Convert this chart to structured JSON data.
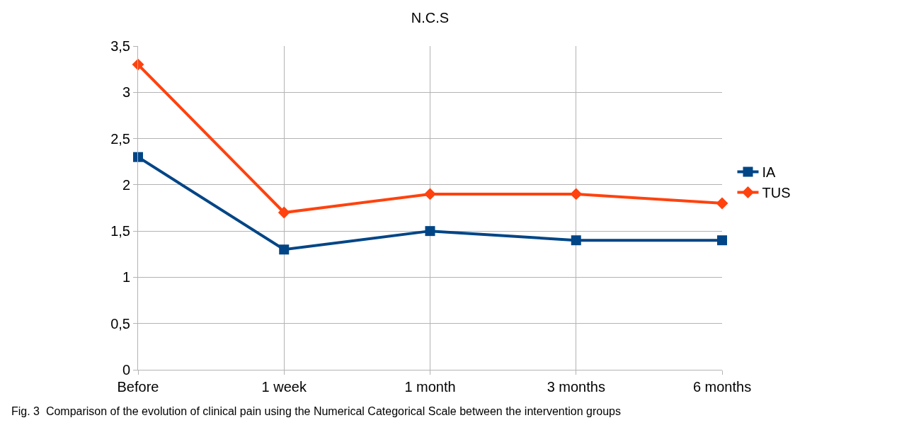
{
  "chart_data": {
    "type": "line",
    "title": "N.C.S",
    "categories": [
      "Before",
      "1 week",
      "1 month",
      "3 months",
      "6 months"
    ],
    "series": [
      {
        "name": "IA",
        "color": "#004586",
        "marker": "square",
        "values": [
          2.3,
          1.3,
          1.5,
          1.4,
          1.4
        ]
      },
      {
        "name": "TUS",
        "color": "#ff420e",
        "marker": "diamond",
        "values": [
          3.3,
          1.7,
          1.9,
          1.9,
          1.8
        ]
      }
    ],
    "ylim": [
      0,
      3.5
    ],
    "yticks": [
      0,
      {
        "value": 0.5,
        "label": "0,5"
      },
      1,
      {
        "value": 1.5,
        "label": "1,5"
      },
      2,
      {
        "value": 2.5,
        "label": "2,5"
      },
      3,
      {
        "value": 3.5,
        "label": "3,5"
      }
    ],
    "grid": true,
    "legend": "right",
    "line_style": "solid",
    "annotations": [
      "Fig. 3  Comparison of the evolution of clinical pain using the Numerical Categorical Scale between the intervention groups"
    ]
  }
}
